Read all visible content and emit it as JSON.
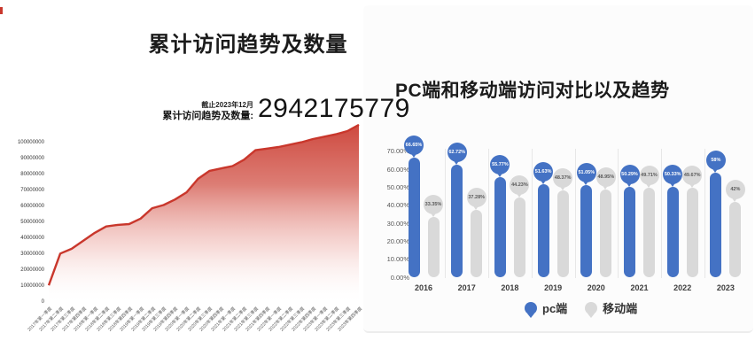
{
  "left_panel": {
    "title": "累计访问趋势及数量",
    "kpi": {
      "caption": "截止2023年12月",
      "label": "累计访问趋势及数量:",
      "value": "2942175779"
    }
  },
  "right_panel": {
    "title": "PC端和移动端访问对比以及趋势",
    "legend": [
      {
        "name": "pc端",
        "color": "#4472c4"
      },
      {
        "name": "移动端",
        "color": "#d9d9d9"
      }
    ]
  },
  "colors": {
    "red_line": "#c9372c",
    "blue": "#4472c4",
    "gray_bar": "#d9d9d9",
    "gray_text": "#595959",
    "separator": "#e7e7e7"
  },
  "chart_data": [
    {
      "type": "area",
      "title": "累计访问趋势及数量",
      "xlabel": "",
      "ylabel": "",
      "grid": false,
      "legend_position": "none",
      "ylim": [
        0,
        112000000
      ],
      "yticks": [
        "100000000",
        "90000000",
        "80000000",
        "70000000",
        "60000000",
        "50000000",
        "40000000",
        "30000000",
        "20000000",
        "10000000",
        "0"
      ],
      "x": [
        "2017年第一季度",
        "2017年第二季度",
        "2017年第三季度",
        "2017年第四季度",
        "2018年第一季度",
        "2018年第二季度",
        "2018年第三季度",
        "2018年第四季度",
        "2019年第一季度",
        "2019年第二季度",
        "2019年第三季度",
        "2019年第四季度",
        "2020年第一季度",
        "2020年第二季度",
        "2020年第三季度",
        "2020年第四季度",
        "2021年第一季度",
        "2021年第二季度",
        "2021年第三季度",
        "2021年第四季度",
        "2022年第一季度",
        "2022年第二季度",
        "2022年第三季度",
        "2022年第四季度",
        "2023年第一季度",
        "2023年第二季度",
        "2023年第三季度",
        "2023年第四季度"
      ],
      "values": [
        10500000,
        30500000,
        33500000,
        38500000,
        43500000,
        47500000,
        48500000,
        49000000,
        52500000,
        59000000,
        61000000,
        64500000,
        69000000,
        77500000,
        82500000,
        84000000,
        85500000,
        89500000,
        95500000,
        96500000,
        97500000,
        99000000,
        100500000,
        102500000,
        104000000,
        105500000,
        107500000,
        111500000
      ],
      "annotation": {
        "caption": "截止2023年12月",
        "label": "累计访问趋势及数量:",
        "value": "2942175779"
      }
    },
    {
      "type": "bar",
      "title": "PC端和移动端访问对比以及趋势",
      "grid": false,
      "legend_position": "bottom",
      "ylim": [
        0,
        70
      ],
      "yticks": [
        "70.00%",
        "60.00%",
        "50.00%",
        "40.00%",
        "30.00%",
        "20.00%",
        "10.00%",
        "0.00%"
      ],
      "categories": [
        "2016",
        "2017",
        "2018",
        "2019",
        "2020",
        "2021",
        "2022",
        "2023"
      ],
      "series": [
        {
          "name": "pc端",
          "color": "#4472c4",
          "values": [
            66.65,
            62.72,
            55.77,
            51.63,
            51.05,
            50.29,
            50.33,
            58
          ],
          "labels": [
            "66.65%",
            "62.72%",
            "55.77%",
            "51.63%",
            "51.05%",
            "50.29%",
            "50.33%",
            "58%"
          ]
        },
        {
          "name": "移动端",
          "color": "#d9d9d9",
          "values": [
            33.35,
            37.28,
            44.23,
            48.37,
            48.95,
            49.71,
            49.67,
            42
          ],
          "labels": [
            "33.35%",
            "37.28%",
            "44.23%",
            "48.37%",
            "48.95%",
            "49.71%",
            "49.67%",
            "42%"
          ]
        }
      ]
    }
  ]
}
